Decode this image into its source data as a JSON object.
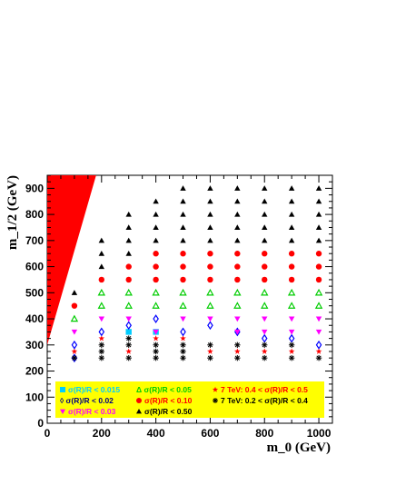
{
  "chart_data": {
    "type": "scatter",
    "title": "",
    "xlabel": "m_0 (GeV)",
    "ylabel": "m_1/2 (GeV)",
    "xlim": [
      0,
      1050
    ],
    "ylim": [
      0,
      950
    ],
    "xticks": [
      "0",
      "200",
      "400",
      "600",
      "800",
      "1000"
    ],
    "yticks": [
      "0",
      "100",
      "200",
      "300",
      "400",
      "500",
      "600",
      "700",
      "800",
      "900"
    ],
    "excluded_region": {
      "color": "#ff0000",
      "polygon": [
        [
          0,
          300
        ],
        [
          0,
          950
        ],
        [
          180,
          950
        ]
      ]
    },
    "legend_position": "bottom",
    "series": [
      {
        "name": "σ(R)/R < 0.015",
        "marker": "square",
        "color": "#00ccff",
        "points": [
          [
            300,
            350
          ],
          [
            400,
            350
          ]
        ]
      },
      {
        "name": "Δ σ(R)/R < 0.05",
        "marker": "triangle-open",
        "color": "#00cc00",
        "points": [
          [
            100,
            400
          ],
          [
            200,
            450
          ],
          [
            300,
            450
          ],
          [
            400,
            450
          ],
          [
            500,
            450
          ],
          [
            600,
            450
          ],
          [
            700,
            450
          ],
          [
            800,
            450
          ],
          [
            900,
            450
          ],
          [
            1000,
            450
          ],
          [
            200,
            500
          ],
          [
            300,
            500
          ],
          [
            400,
            500
          ],
          [
            500,
            500
          ],
          [
            600,
            500
          ],
          [
            700,
            500
          ],
          [
            800,
            500
          ],
          [
            900,
            500
          ],
          [
            1000,
            500
          ]
        ]
      },
      {
        "name": "7 TeV: 0.4 < σ(R)/R < 0.5",
        "marker": "star",
        "color": "#ff0000",
        "points": [
          [
            100,
            275
          ],
          [
            200,
            325
          ],
          [
            300,
            275
          ],
          [
            400,
            325
          ],
          [
            500,
            325
          ],
          [
            600,
            275
          ],
          [
            700,
            275
          ],
          [
            800,
            275
          ],
          [
            900,
            275
          ],
          [
            1000,
            275
          ]
        ]
      },
      {
        "name": "◊ σ(R)/R < 0.02",
        "marker": "diamond-open",
        "color": "#0000ff",
        "points": [
          [
            100,
            250
          ],
          [
            100,
            300
          ],
          [
            200,
            350
          ],
          [
            300,
            375
          ],
          [
            400,
            400
          ],
          [
            500,
            350
          ],
          [
            600,
            375
          ],
          [
            700,
            350
          ],
          [
            800,
            325
          ],
          [
            900,
            325
          ],
          [
            1000,
            300
          ]
        ]
      },
      {
        "name": "σ(R)/R < 0.10",
        "marker": "circle",
        "color": "#ff0000",
        "points": [
          [
            100,
            450
          ],
          [
            200,
            550
          ],
          [
            300,
            600
          ],
          [
            400,
            600
          ],
          [
            400,
            650
          ],
          [
            500,
            650
          ],
          [
            600,
            650
          ],
          [
            700,
            650
          ],
          [
            800,
            650
          ],
          [
            900,
            650
          ],
          [
            1000,
            650
          ],
          [
            300,
            550
          ],
          [
            400,
            550
          ],
          [
            500,
            550
          ],
          [
            500,
            600
          ],
          [
            600,
            600
          ],
          [
            600,
            550
          ],
          [
            700,
            600
          ],
          [
            700,
            550
          ],
          [
            800,
            600
          ],
          [
            800,
            550
          ],
          [
            900,
            600
          ],
          [
            900,
            550
          ],
          [
            1000,
            600
          ],
          [
            1000,
            550
          ]
        ]
      },
      {
        "name": "7 TeV: 0.2 < σ(R)/R < 0.4",
        "marker": "asterisk",
        "color": "#000000",
        "points": [
          [
            100,
            250
          ],
          [
            200,
            250
          ],
          [
            200,
            275
          ],
          [
            200,
            300
          ],
          [
            300,
            250
          ],
          [
            300,
            300
          ],
          [
            300,
            325
          ],
          [
            400,
            250
          ],
          [
            400,
            275
          ],
          [
            400,
            300
          ],
          [
            500,
            250
          ],
          [
            500,
            275
          ],
          [
            500,
            300
          ],
          [
            600,
            250
          ],
          [
            600,
            300
          ],
          [
            700,
            250
          ],
          [
            700,
            300
          ],
          [
            800,
            250
          ],
          [
            800,
            300
          ],
          [
            900,
            250
          ],
          [
            900,
            300
          ],
          [
            1000,
            250
          ]
        ]
      },
      {
        "name": "σ(R)/R < 0.03",
        "marker": "triangle-down",
        "color": "#ff00ff",
        "points": [
          [
            100,
            350
          ],
          [
            200,
            400
          ],
          [
            300,
            400
          ],
          [
            400,
            350
          ],
          [
            500,
            400
          ],
          [
            600,
            400
          ],
          [
            700,
            400
          ],
          [
            800,
            400
          ],
          [
            900,
            400
          ],
          [
            1000,
            400
          ],
          [
            700,
            350
          ],
          [
            800,
            350
          ],
          [
            900,
            350
          ],
          [
            1000,
            350
          ]
        ]
      },
      {
        "name": "σ(R)/R < 0.50",
        "marker": "triangle",
        "color": "#000000",
        "points": [
          [
            100,
            500
          ],
          [
            200,
            600
          ],
          [
            200,
            650
          ],
          [
            200,
            700
          ],
          [
            300,
            650
          ],
          [
            300,
            700
          ],
          [
            300,
            750
          ],
          [
            300,
            800
          ],
          [
            400,
            700
          ],
          [
            400,
            750
          ],
          [
            400,
            800
          ],
          [
            400,
            850
          ],
          [
            500,
            700
          ],
          [
            500,
            750
          ],
          [
            500,
            800
          ],
          [
            500,
            850
          ],
          [
            500,
            900
          ],
          [
            600,
            700
          ],
          [
            600,
            750
          ],
          [
            600,
            800
          ],
          [
            600,
            850
          ],
          [
            600,
            900
          ],
          [
            700,
            700
          ],
          [
            700,
            750
          ],
          [
            700,
            800
          ],
          [
            700,
            850
          ],
          [
            700,
            900
          ],
          [
            800,
            700
          ],
          [
            800,
            750
          ],
          [
            800,
            800
          ],
          [
            800,
            850
          ],
          [
            800,
            900
          ],
          [
            900,
            700
          ],
          [
            900,
            750
          ],
          [
            900,
            800
          ],
          [
            900,
            850
          ],
          [
            900,
            900
          ],
          [
            1000,
            700
          ],
          [
            1000,
            750
          ],
          [
            1000,
            800
          ],
          [
            1000,
            850
          ],
          [
            1000,
            900
          ]
        ]
      }
    ],
    "legend": [
      {
        "label": "σ(R)/R < 0.015",
        "marker": "square",
        "color": "#00ccff",
        "text_color": "#00ccff"
      },
      {
        "label": "Δ σ(R)/R < 0.05",
        "marker": "none",
        "color": "#00cc00",
        "text_color": "#00cc00"
      },
      {
        "label": "7 TeV: 0.4 < σ(R)/R < 0.5",
        "marker": "star",
        "color": "#ff0000",
        "text_color": "#ff0000"
      },
      {
        "label": "◊ σ(R)/R < 0.02",
        "marker": "none",
        "color": "#0000ff",
        "text_color": "#000080"
      },
      {
        "label": "σ(R)/R < 0.10",
        "marker": "circle",
        "color": "#ff0000",
        "text_color": "#ff0000"
      },
      {
        "label": "7 TeV: 0.2 < σ(R)/R < 0.4",
        "marker": "asterisk",
        "color": "#000000",
        "text_color": "#000000"
      },
      {
        "label": "σ(R)/R < 0.03",
        "marker": "triangle-down",
        "color": "#ff00ff",
        "text_color": "#ff00ff"
      },
      {
        "label": "σ(R)/R < 0.50",
        "marker": "triangle",
        "color": "#000000",
        "text_color": "#000000"
      }
    ],
    "legend_background": "#ffff00"
  }
}
